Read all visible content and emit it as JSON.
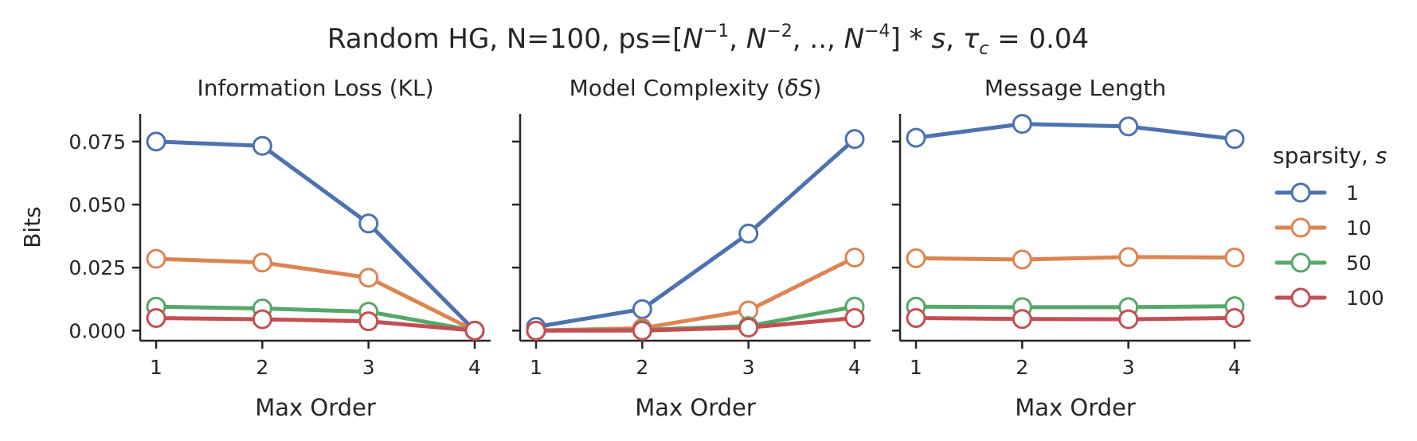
{
  "figure": {
    "suptitle": {
      "prefix": "Random HG, N=100, ps=[",
      "n1_base": "N",
      "n1_exp": "−1",
      "sep1": ", ",
      "n2_base": "N",
      "n2_exp": "−2",
      "sep2": ", .., ",
      "n3_base": "N",
      "n3_exp": "−4",
      "suffix": "] * ",
      "s_symbol": "s",
      "sep3": ", ",
      "tau": "τ",
      "tau_sub": "c",
      "tau_value": " = 0.04"
    }
  },
  "legend": {
    "title": "sparsity, ",
    "title_symbol": "s",
    "placement": "right"
  },
  "colors": {
    "1": "#4c72b0",
    "10": "#dd8452",
    "50": "#55a868",
    "100": "#c44e52",
    "axis": "#262626"
  },
  "chart_data": [
    {
      "type": "line",
      "title": "Information Loss (KL)",
      "xlabel": "Max Order",
      "ylabel": "Bits",
      "x": [
        1,
        2,
        3,
        4
      ],
      "xticks": [
        "1",
        "2",
        "3",
        "4"
      ],
      "yticks": [
        "0.000",
        "0.025",
        "0.050",
        "0.075"
      ],
      "ylim": [
        -0.004,
        0.086
      ],
      "series": [
        {
          "name": "1",
          "values": [
            0.075,
            0.0733,
            0.0425,
            0.0
          ]
        },
        {
          "name": "10",
          "values": [
            0.0285,
            0.027,
            0.021,
            0.0
          ]
        },
        {
          "name": "50",
          "values": [
            0.0095,
            0.0088,
            0.0075,
            0.0
          ]
        },
        {
          "name": "100",
          "values": [
            0.005,
            0.0045,
            0.0037,
            0.0
          ]
        }
      ]
    },
    {
      "type": "line",
      "title": "Model Complexity (",
      "title_symbol": "δS",
      "title_suffix": ")",
      "xlabel": "Max Order",
      "ylabel": "",
      "x": [
        1,
        2,
        3,
        4
      ],
      "xticks": [
        "1",
        "2",
        "3",
        "4"
      ],
      "yticks": [],
      "ylim": [
        -0.004,
        0.086
      ],
      "series": [
        {
          "name": "1",
          "values": [
            0.0015,
            0.0085,
            0.0385,
            0.076
          ]
        },
        {
          "name": "10",
          "values": [
            0.0,
            0.001,
            0.008,
            0.029
          ]
        },
        {
          "name": "50",
          "values": [
            0.0,
            0.0003,
            0.0018,
            0.0095
          ]
        },
        {
          "name": "100",
          "values": [
            0.0,
            0.0,
            0.0012,
            0.005
          ]
        }
      ]
    },
    {
      "type": "line",
      "title": "Message Length",
      "xlabel": "Max Order",
      "ylabel": "",
      "x": [
        1,
        2,
        3,
        4
      ],
      "xticks": [
        "1",
        "2",
        "3",
        "4"
      ],
      "yticks": [],
      "ylim": [
        -0.004,
        0.086
      ],
      "series": [
        {
          "name": "1",
          "values": [
            0.0765,
            0.082,
            0.081,
            0.076
          ]
        },
        {
          "name": "10",
          "values": [
            0.0287,
            0.0282,
            0.0292,
            0.029
          ]
        },
        {
          "name": "50",
          "values": [
            0.0095,
            0.0093,
            0.0093,
            0.0097
          ]
        },
        {
          "name": "100",
          "values": [
            0.005,
            0.0046,
            0.0045,
            0.005
          ]
        }
      ]
    }
  ]
}
